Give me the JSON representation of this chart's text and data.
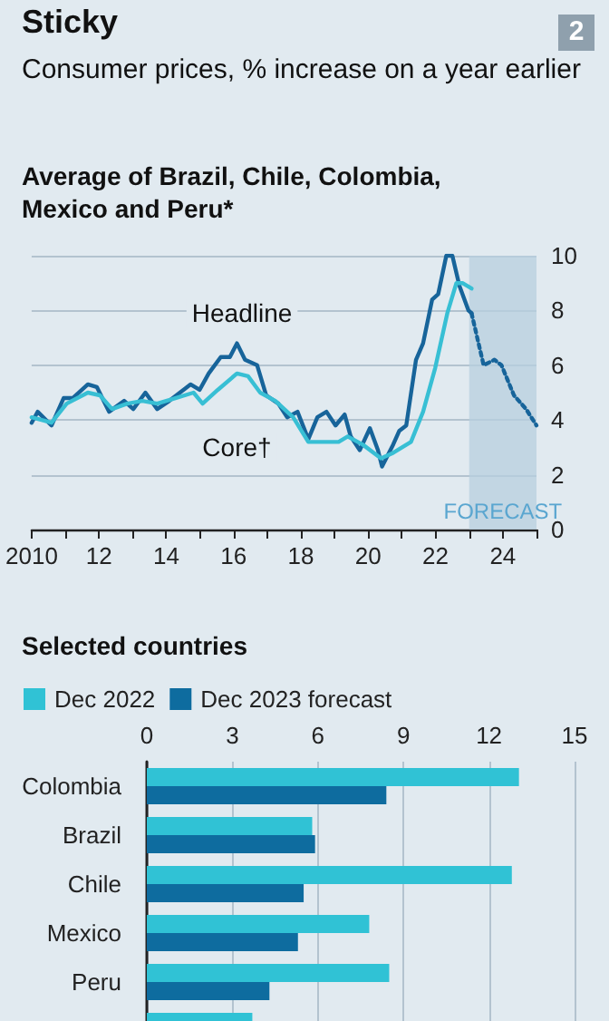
{
  "chart_data": [
    {
      "type": "line",
      "title": "Sticky",
      "subtitle": "Consumer prices, % increase on a year earlier",
      "annotations": [
        "2",
        "Average of Brazil, Chile, Colombia, Mexico and Peru*"
      ],
      "series": [
        {
          "name": "Headline",
          "color": "#17649a",
          "x": [
            2010.0,
            2010.18,
            2010.59,
            2010.95,
            2011.22,
            2011.67,
            2011.94,
            2012.3,
            2012.75,
            2013.02,
            2013.38,
            2013.73,
            2014.09,
            2014.72,
            2014.99,
            2015.26,
            2015.62,
            2015.89,
            2016.1,
            2016.34,
            2016.7,
            2016.97,
            2017.33,
            2017.59,
            2017.9,
            2018.22,
            2018.49,
            2018.76,
            2019.03,
            2019.3,
            2019.48,
            2019.75,
            2020.05,
            2020.29,
            2020.41,
            2020.74,
            2020.92,
            2021.13,
            2021.42,
            2021.63,
            2021.9,
            2022.08,
            2022.32,
            2022.5,
            2022.71,
            2022.98,
            2023.07
          ],
          "values": [
            3.9,
            4.3,
            3.8,
            4.8,
            4.8,
            5.3,
            5.2,
            4.3,
            4.7,
            4.4,
            5.0,
            4.4,
            4.7,
            5.3,
            5.1,
            5.7,
            6.3,
            6.3,
            6.8,
            6.2,
            6.0,
            4.9,
            4.6,
            4.1,
            4.3,
            3.3,
            4.1,
            4.3,
            3.8,
            4.2,
            3.4,
            2.9,
            3.7,
            2.9,
            2.3,
            3.1,
            3.6,
            3.8,
            6.2,
            6.8,
            8.4,
            8.6,
            10.0,
            10.0,
            8.9,
            8.0,
            7.9
          ]
        },
        {
          "color": "#17649a",
          "line_style": "dotted",
          "x": [
            2023.07,
            2023.43,
            2023.75,
            2023.96,
            2024.33,
            2024.69,
            2025.0
          ],
          "values": [
            7.9,
            6.0,
            6.2,
            6.0,
            4.9,
            4.4,
            3.8
          ]
        },
        {
          "name": "Core†",
          "color": "#38bfd4",
          "x": [
            2010.0,
            2010.59,
            2011.04,
            2011.67,
            2012.03,
            2012.39,
            2012.84,
            2013.29,
            2013.73,
            2014.27,
            2014.81,
            2015.08,
            2015.53,
            2016.1,
            2016.43,
            2016.79,
            2017.24,
            2017.77,
            2018.22,
            2018.76,
            2019.12,
            2019.39,
            2019.84,
            2020.38,
            2020.74,
            2021.27,
            2021.63,
            2021.99,
            2022.35,
            2022.62,
            2022.8,
            2023.07
          ],
          "values": [
            4.1,
            3.9,
            4.6,
            5.0,
            4.9,
            4.4,
            4.6,
            4.7,
            4.6,
            4.8,
            5.0,
            4.6,
            5.1,
            5.7,
            5.6,
            5.0,
            4.7,
            4.1,
            3.2,
            3.2,
            3.2,
            3.4,
            3.1,
            2.6,
            2.8,
            3.2,
            4.3,
            5.9,
            7.9,
            9.0,
            9.0,
            8.8
          ]
        }
      ],
      "xlim": [
        2010,
        2025
      ],
      "xticks": [
        {
          "value": 2010,
          "label": "2010"
        },
        {
          "value": 2011,
          "label": null
        },
        {
          "value": 2012,
          "label": "12"
        },
        {
          "value": 2013,
          "label": null
        },
        {
          "value": 2014,
          "label": "14"
        },
        {
          "value": 2015,
          "label": null
        },
        {
          "value": 2016,
          "label": "16"
        },
        {
          "value": 2017,
          "label": null
        },
        {
          "value": 2018,
          "label": "18"
        },
        {
          "value": 2019,
          "label": null
        },
        {
          "value": 2020,
          "label": "20"
        },
        {
          "value": 2021,
          "label": null
        },
        {
          "value": 2022,
          "label": "22"
        },
        {
          "value": 2023,
          "label": null
        },
        {
          "value": 2024,
          "label": "24"
        },
        {
          "value": 2025,
          "label": null
        }
      ],
      "ylim": [
        0,
        10
      ],
      "yticks": [
        0,
        2,
        4,
        6,
        8,
        10
      ],
      "bands": [
        {
          "axis": "x",
          "from": 2023,
          "to": 2025,
          "label": "FORECAST",
          "color": "#b7cfdf"
        }
      ],
      "grid": "y",
      "legend": false,
      "marker": "none",
      "line_style": "solid"
    },
    {
      "type": "bar",
      "orientation": "horizontal",
      "title": "Selected countries",
      "categories": [
        "Colombia",
        "Brazil",
        "Chile",
        "Mexico",
        "Peru",
        null
      ],
      "series": [
        {
          "name": "Dec 2022",
          "color": "#30c2d5",
          "values": [
            13.05,
            5.8,
            12.8,
            7.8,
            8.5,
            3.7
          ]
        },
        {
          "name": "Dec 2023 forecast",
          "color": "#0e6c9f",
          "values": [
            8.4,
            5.9,
            5.5,
            5.3,
            4.3,
            null
          ]
        }
      ],
      "xlim": [
        0,
        15
      ],
      "xticks": [
        0,
        3,
        6,
        9,
        12,
        15
      ],
      "grid": "x",
      "legend": "top left"
    }
  ]
}
